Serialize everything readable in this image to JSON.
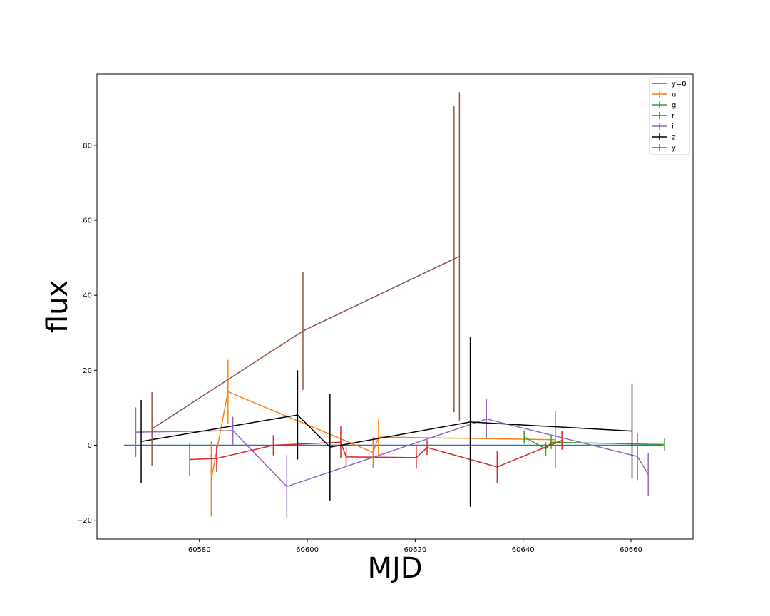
{
  "chart_data": {
    "type": "line",
    "title": "",
    "xlabel": "MJD",
    "ylabel": "flux",
    "xlim": [
      60561,
      60671.5
    ],
    "ylim": [
      -25,
      99
    ],
    "xticks": [
      60580,
      60600,
      60620,
      60640,
      60660
    ],
    "yticks": [
      -20,
      0,
      20,
      40,
      60,
      80
    ],
    "legend_position": "top-right",
    "grid": false,
    "reference_line": {
      "name": "y=0",
      "x": [
        60566,
        60666
      ],
      "y": [
        0,
        0
      ],
      "color": "#1f77b4"
    },
    "series": [
      {
        "name": "u",
        "color": "#ff7f0e",
        "x": [
          60582.2,
          60585.3,
          60612.2,
          60613.2,
          60646.0
        ],
        "y": [
          -9.0,
          14.3,
          -1.9,
          2.2,
          1.5
        ],
        "err": [
          10.0,
          8.5,
          4.1,
          4.8,
          7.6
        ]
      },
      {
        "name": "g",
        "color": "#2ca02c",
        "x": [
          60640.2,
          60644.2,
          60645.2,
          60666.2
        ],
        "y": [
          2.2,
          -1.0,
          0.8,
          0.2
        ],
        "err": [
          1.8,
          1.8,
          1.8,
          1.8
        ]
      },
      {
        "name": "r",
        "color": "#d62728",
        "x": [
          60578.2,
          60583.2,
          60593.7,
          60606.2,
          60607.2,
          60620.2,
          60622.2,
          60635.2,
          60647.2
        ],
        "y": [
          -3.8,
          -3.5,
          0.0,
          0.8,
          -3.1,
          -3.3,
          -0.6,
          -5.8,
          1.3
        ],
        "err": [
          4.5,
          3.6,
          2.7,
          4.2,
          2.7,
          3.0,
          2.0,
          4.2,
          2.5
        ]
      },
      {
        "name": "i",
        "color": "#9467bd",
        "x": [
          60568.2,
          60586.2,
          60596.2,
          60633.2,
          60661.2,
          60663.2
        ],
        "y": [
          3.5,
          3.9,
          -11.0,
          7.0,
          -3.0,
          -7.8
        ],
        "err": [
          6.6,
          3.7,
          8.4,
          5.3,
          6.3,
          5.8
        ]
      },
      {
        "name": "z",
        "color": "#000000",
        "x": [
          60569.2,
          60598.2,
          60604.2,
          60630.2,
          60660.2
        ],
        "y": [
          1.0,
          8.1,
          -0.5,
          6.2,
          3.8
        ],
        "err": [
          11.1,
          11.9,
          14.2,
          22.6,
          12.7
        ]
      },
      {
        "name": "y",
        "color": "#8c564b",
        "x": [
          60571.2,
          60599.2,
          60628.2
        ],
        "y": [
          4.4,
          30.5,
          50.4
        ],
        "err": [
          9.8,
          15.7,
          43.8
        ],
        "extra_bars": [
          {
            "x": 60627.2,
            "y": 49.7,
            "err": 40.9
          }
        ]
      }
    ]
  }
}
